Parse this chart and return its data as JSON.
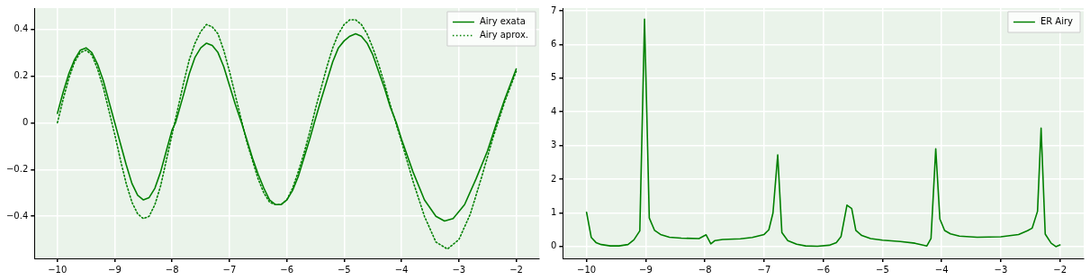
{
  "chart_data": [
    {
      "type": "line",
      "xlim": [
        -10.4,
        -1.6
      ],
      "xticks": [
        -10,
        -9,
        -8,
        -7,
        -6,
        -5,
        -4,
        -3,
        -2
      ],
      "ylim": [
        -0.58,
        0.49
      ],
      "yticks": [
        -0.4,
        -0.2,
        0.0,
        0.2,
        0.4
      ],
      "grid": true,
      "legend": "top right",
      "marker": "none",
      "series": [
        {
          "name": "Airy exata",
          "color": "#008000",
          "line_style": "solid",
          "x": [
            -10,
            -9.9,
            -9.8,
            -9.7,
            -9.6,
            -9.5,
            -9.4,
            -9.3,
            -9.2,
            -9.1,
            -9.0,
            -8.9,
            -8.8,
            -8.7,
            -8.6,
            -8.5,
            -8.4,
            -8.3,
            -8.2,
            -8.1,
            -8.0,
            -7.94,
            -7.8,
            -7.7,
            -7.6,
            -7.5,
            -7.4,
            -7.3,
            -7.2,
            -7.1,
            -7.0,
            -6.9,
            -6.79,
            -6.7,
            -6.6,
            -6.5,
            -6.4,
            -6.3,
            -6.2,
            -6.1,
            -6.0,
            -5.9,
            -5.8,
            -5.7,
            -5.6,
            -5.52,
            -5.4,
            -5.3,
            -5.2,
            -5.1,
            -5.0,
            -4.9,
            -4.8,
            -4.7,
            -4.6,
            -4.5,
            -4.4,
            -4.3,
            -4.2,
            -4.09,
            -4.0,
            -3.8,
            -3.6,
            -3.4,
            -3.25,
            -3.1,
            -2.9,
            -2.7,
            -2.5,
            -2.34,
            -2.2,
            -2.0
          ],
          "values": [
            0.04,
            0.13,
            0.21,
            0.27,
            0.31,
            0.32,
            0.3,
            0.25,
            0.18,
            0.09,
            0.0,
            -0.09,
            -0.18,
            -0.26,
            -0.31,
            -0.33,
            -0.32,
            -0.28,
            -0.21,
            -0.12,
            -0.03,
            0.0,
            0.12,
            0.21,
            0.28,
            0.32,
            0.34,
            0.33,
            0.3,
            0.24,
            0.16,
            0.08,
            0.0,
            -0.07,
            -0.15,
            -0.22,
            -0.28,
            -0.33,
            -0.35,
            -0.35,
            -0.33,
            -0.29,
            -0.23,
            -0.15,
            -0.07,
            0.0,
            0.1,
            0.18,
            0.26,
            0.32,
            0.35,
            0.37,
            0.38,
            0.37,
            0.34,
            0.29,
            0.22,
            0.15,
            0.07,
            0.0,
            -0.07,
            -0.21,
            -0.33,
            -0.4,
            -0.42,
            -0.41,
            -0.35,
            -0.24,
            -0.12,
            0.0,
            0.1,
            0.23
          ]
        },
        {
          "name": "Airy aprox.",
          "color": "#008000",
          "line_style": "dotted",
          "x": [
            -10,
            -9.9,
            -9.8,
            -9.7,
            -9.6,
            -9.5,
            -9.4,
            -9.3,
            -9.2,
            -9.1,
            -9.0,
            -8.9,
            -8.8,
            -8.7,
            -8.6,
            -8.5,
            -8.4,
            -8.3,
            -8.2,
            -8.1,
            -8.0,
            -7.9,
            -7.8,
            -7.7,
            -7.6,
            -7.5,
            -7.4,
            -7.3,
            -7.2,
            -7.1,
            -7.0,
            -6.9,
            -6.8,
            -6.7,
            -6.6,
            -6.5,
            -6.4,
            -6.3,
            -6.2,
            -6.1,
            -6.0,
            -5.9,
            -5.8,
            -5.7,
            -5.6,
            -5.5,
            -5.4,
            -5.3,
            -5.2,
            -5.1,
            -5.0,
            -4.9,
            -4.8,
            -4.7,
            -4.6,
            -4.5,
            -4.4,
            -4.3,
            -4.2,
            -4.0,
            -3.8,
            -3.6,
            -3.4,
            -3.2,
            -3.0,
            -2.8,
            -2.6,
            -2.4,
            -2.2,
            -2.0
          ],
          "values": [
            0.0,
            0.1,
            0.19,
            0.26,
            0.3,
            0.31,
            0.29,
            0.23,
            0.15,
            0.05,
            -0.05,
            -0.16,
            -0.26,
            -0.34,
            -0.39,
            -0.41,
            -0.4,
            -0.35,
            -0.27,
            -0.16,
            -0.05,
            0.06,
            0.17,
            0.27,
            0.34,
            0.39,
            0.42,
            0.41,
            0.38,
            0.31,
            0.22,
            0.12,
            0.02,
            -0.08,
            -0.16,
            -0.24,
            -0.3,
            -0.34,
            -0.35,
            -0.35,
            -0.33,
            -0.28,
            -0.21,
            -0.13,
            -0.04,
            0.06,
            0.15,
            0.24,
            0.32,
            0.38,
            0.42,
            0.44,
            0.44,
            0.42,
            0.38,
            0.32,
            0.25,
            0.17,
            0.08,
            -0.08,
            -0.25,
            -0.4,
            -0.51,
            -0.54,
            -0.5,
            -0.39,
            -0.23,
            -0.06,
            0.09,
            0.22
          ]
        }
      ]
    },
    {
      "type": "line",
      "xlim": [
        -10.4,
        -1.6
      ],
      "xticks": [
        -10,
        -9,
        -8,
        -7,
        -6,
        -5,
        -4,
        -3,
        -2
      ],
      "ylim": [
        -0.35,
        7.08
      ],
      "yticks": [
        0,
        1,
        2,
        3,
        4,
        5,
        6,
        7
      ],
      "grid": true,
      "legend": "top right",
      "marker": "none",
      "series": [
        {
          "name": "ER Airy",
          "color": "#008000",
          "line_style": "solid",
          "x": [
            -10,
            -9.92,
            -9.84,
            -9.75,
            -9.6,
            -9.45,
            -9.3,
            -9.2,
            -9.1,
            -9.02,
            -8.94,
            -8.85,
            -8.75,
            -8.6,
            -8.4,
            -8.1,
            -7.98,
            -7.9,
            -7.83,
            -7.7,
            -7.4,
            -7.2,
            -7.0,
            -6.92,
            -6.85,
            -6.77,
            -6.7,
            -6.6,
            -6.45,
            -6.3,
            -6.1,
            -5.9,
            -5.78,
            -5.7,
            -5.6,
            -5.52,
            -5.45,
            -5.35,
            -5.2,
            -5.0,
            -4.7,
            -4.45,
            -4.25,
            -4.18,
            -4.1,
            -4.03,
            -3.95,
            -3.85,
            -3.7,
            -3.4,
            -3.0,
            -2.7,
            -2.55,
            -2.47,
            -2.38,
            -2.32,
            -2.25,
            -2.15,
            -2.07,
            -2.0
          ],
          "values": [
            1.02,
            0.27,
            0.12,
            0.06,
            0.02,
            0.02,
            0.06,
            0.2,
            0.47,
            6.75,
            0.85,
            0.48,
            0.36,
            0.28,
            0.25,
            0.24,
            0.35,
            0.08,
            0.18,
            0.21,
            0.23,
            0.27,
            0.36,
            0.5,
            1.0,
            2.72,
            0.42,
            0.18,
            0.07,
            0.02,
            0.01,
            0.04,
            0.12,
            0.3,
            1.23,
            1.13,
            0.48,
            0.33,
            0.24,
            0.19,
            0.15,
            0.1,
            0.02,
            0.24,
            2.9,
            0.82,
            0.48,
            0.38,
            0.31,
            0.28,
            0.29,
            0.36,
            0.47,
            0.55,
            1.05,
            3.52,
            0.37,
            0.1,
            0.0,
            0.05
          ]
        }
      ]
    }
  ]
}
